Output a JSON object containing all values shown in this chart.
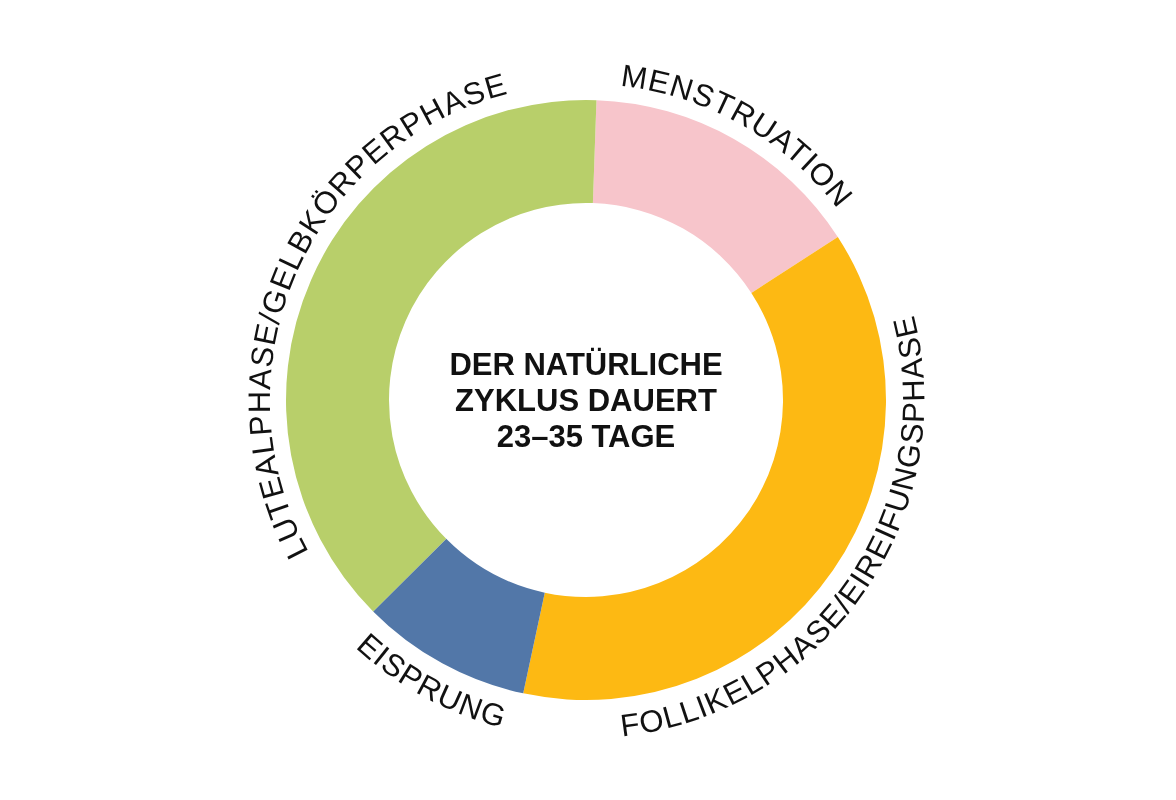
{
  "chart_data": {
    "type": "donut",
    "title": "DER NATÜRLICHE\nZYKLUS DAUERT\n23–35 TAGE",
    "categories": [
      "MENSTRUATION",
      "FOLLIKELPHASE/EIREIFUNGSPHASE",
      "EISPRUNG",
      "LUTEALPHASE/GELBKÖRPERPHASE"
    ],
    "values": [
      15.3,
      37.5,
      9.2,
      38.0
    ],
    "colors": [
      "#f7c5cb",
      "#fdb913",
      "#5277a8",
      "#b8cf6a"
    ]
  }
}
